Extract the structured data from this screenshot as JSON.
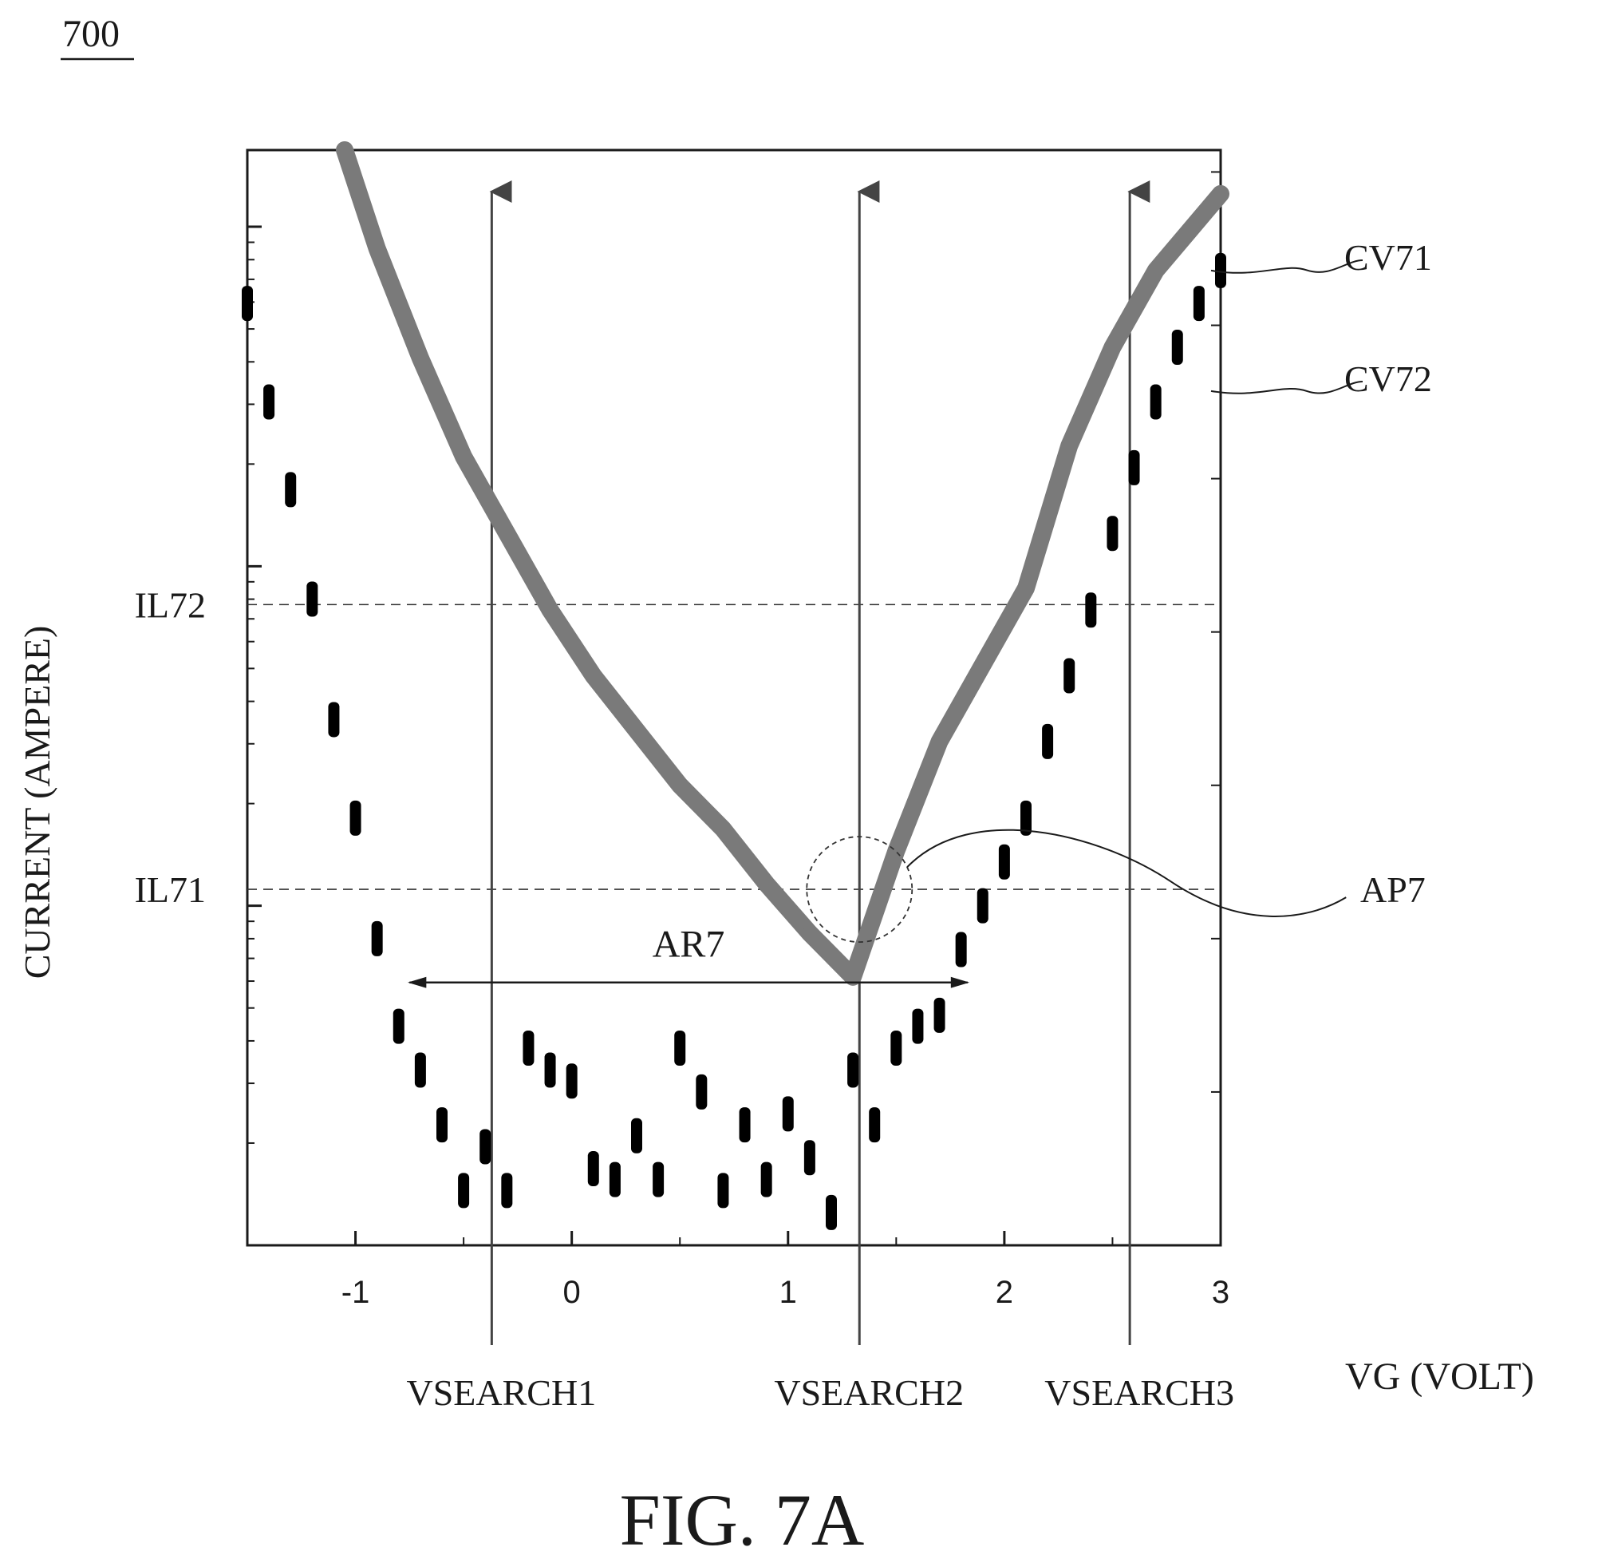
{
  "figure_ref": "700",
  "caption": "FIG. 7A",
  "chart_data": {
    "type": "line",
    "xlabel": "VG (VOLT)",
    "ylabel": "CURRENT (AMPERE)",
    "xlim": [
      -1.5,
      3.0
    ],
    "ylim": [
      0,
      10
    ],
    "x_ticks": [
      -1,
      0,
      1,
      2,
      3
    ],
    "x_tick_labels": [
      "-1",
      "0",
      "1",
      "2",
      "3"
    ],
    "y_scale": "log (major tick values not printed)",
    "grid": false,
    "series": [
      {
        "name": "CV71",
        "color": "#7a7a7a",
        "style": "thick solid",
        "x": [
          -1.05,
          -0.9,
          -0.7,
          -0.5,
          -0.3,
          -0.1,
          0.1,
          0.3,
          0.5,
          0.7,
          0.9,
          1.1,
          1.3,
          1.5,
          1.7,
          1.9,
          2.1,
          2.3,
          2.5,
          2.7,
          2.85,
          3.0
        ],
        "y": [
          10.0,
          9.1,
          8.1,
          7.2,
          6.5,
          5.8,
          5.2,
          4.7,
          4.2,
          3.8,
          3.3,
          2.85,
          2.45,
          3.6,
          4.6,
          5.3,
          6.0,
          7.3,
          8.2,
          8.9,
          9.25,
          9.6
        ]
      },
      {
        "name": "CV72",
        "color": "#000000",
        "style": "dotted blobs",
        "x": [
          -1.5,
          -1.4,
          -1.3,
          -1.2,
          -1.1,
          -1.0,
          -0.9,
          -0.8,
          -0.7,
          -0.6,
          -0.5,
          -0.4,
          -0.3,
          -0.2,
          -0.1,
          0.0,
          0.1,
          0.2,
          0.3,
          0.4,
          0.5,
          0.6,
          0.7,
          0.8,
          0.9,
          1.0,
          1.1,
          1.2,
          1.3,
          1.4,
          1.5,
          1.6,
          1.7,
          1.8,
          1.9,
          2.0,
          2.1,
          2.2,
          2.3,
          2.4,
          2.5,
          2.6,
          2.7,
          2.8,
          2.9,
          3.0
        ],
        "y": [
          8.6,
          7.7,
          6.9,
          5.9,
          4.8,
          3.9,
          2.8,
          2.0,
          1.6,
          1.1,
          0.5,
          0.9,
          0.5,
          1.8,
          1.6,
          1.5,
          0.7,
          0.6,
          1.0,
          0.6,
          1.8,
          1.4,
          0.5,
          1.1,
          0.6,
          1.2,
          0.8,
          0.3,
          1.6,
          1.1,
          1.8,
          2.0,
          2.1,
          2.7,
          3.1,
          3.5,
          3.9,
          4.6,
          5.2,
          5.8,
          6.5,
          7.1,
          7.7,
          8.2,
          8.6,
          8.9
        ]
      }
    ],
    "reference_lines": {
      "horizontal": [
        {
          "label": "IL72",
          "y": 5.85
        },
        {
          "label": "IL71",
          "y": 3.25
        }
      ],
      "vertical": [
        {
          "label": "VSEARCH1",
          "x": -0.37
        },
        {
          "label": "VSEARCH2",
          "x": 1.33
        },
        {
          "label": "VSEARCH3",
          "x": 2.58
        }
      ]
    },
    "annotations": [
      {
        "label": "AR7",
        "type": "double-arrow range",
        "x_from": -0.75,
        "x_to": 1.83,
        "y": 2.4
      },
      {
        "label": "AP7",
        "type": "circle marker",
        "x": 1.33,
        "y": 3.25
      },
      {
        "label": "CV71",
        "type": "curve leader",
        "target_x": 3.0,
        "target_y": 8.9
      },
      {
        "label": "CV72",
        "type": "curve leader",
        "target_x": 3.0,
        "target_y": 7.8
      }
    ]
  }
}
